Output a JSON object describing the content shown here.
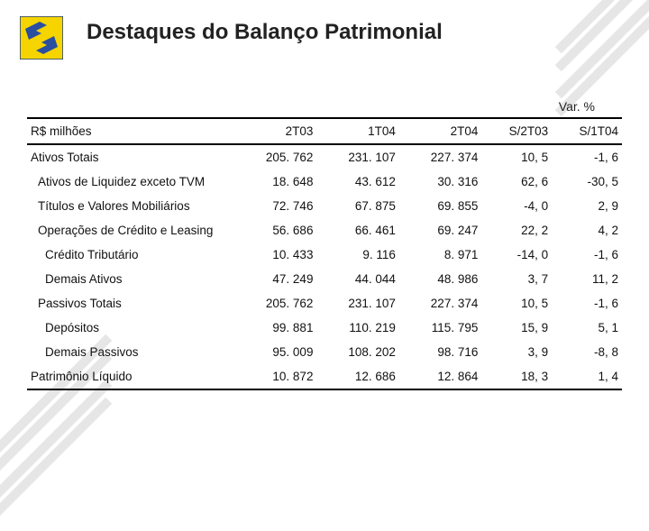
{
  "title": "Destaques do Balanço Patrimonial",
  "currency_label": "R$ milhões",
  "var_label": "Var. %",
  "logo": {
    "bg_color": "#f5d400",
    "fg_color": "#2a4ea0",
    "border_color": "#1c3b80"
  },
  "table": {
    "columns": [
      "",
      "2T03",
      "1T04",
      "2T04",
      "S/2T03",
      "S/1T04"
    ],
    "rows": [
      {
        "indent": 0,
        "label": "Ativos Totais",
        "values": [
          "205. 762",
          "231. 107",
          "227. 374",
          "10, 5",
          "-1, 6"
        ]
      },
      {
        "indent": 1,
        "label": "Ativos de Liquidez exceto TVM",
        "values": [
          "18. 648",
          "43. 612",
          "30. 316",
          "62, 6",
          "-30, 5"
        ]
      },
      {
        "indent": 1,
        "label": "Títulos e Valores Mobiliários",
        "values": [
          "72. 746",
          "67. 875",
          "69. 855",
          "-4, 0",
          "2, 9"
        ]
      },
      {
        "indent": 1,
        "label": "Operações de Crédito e Leasing",
        "values": [
          "56. 686",
          "66. 461",
          "69. 247",
          "22, 2",
          "4, 2"
        ]
      },
      {
        "indent": 2,
        "label": "Crédito Tributário",
        "values": [
          "10. 433",
          "9. 116",
          "8. 971",
          "-14, 0",
          "-1, 6"
        ]
      },
      {
        "indent": 2,
        "label": "Demais Ativos",
        "values": [
          "47. 249",
          "44. 044",
          "48. 986",
          "3, 7",
          "11, 2"
        ]
      },
      {
        "indent": 1,
        "label": "Passivos Totais",
        "values": [
          "205. 762",
          "231. 107",
          "227. 374",
          "10, 5",
          "-1, 6"
        ]
      },
      {
        "indent": 2,
        "label": "Depósitos",
        "values": [
          "99. 881",
          "110. 219",
          "115. 795",
          "15, 9",
          "5, 1"
        ]
      },
      {
        "indent": 2,
        "label": "Demais Passivos",
        "values": [
          "95. 009",
          "108. 202",
          "98. 716",
          "3, 9",
          "-8, 8"
        ]
      },
      {
        "indent": 0,
        "label": "Patrimônio Líquido",
        "values": [
          "10. 872",
          "12. 686",
          "12. 864",
          "18, 3",
          "1, 4"
        ]
      }
    ]
  }
}
